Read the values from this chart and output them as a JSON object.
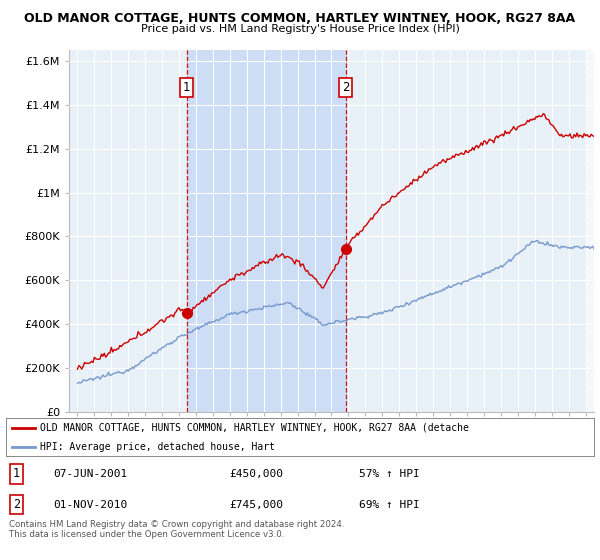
{
  "title1": "OLD MANOR COTTAGE, HUNTS COMMON, HARTLEY WINTNEY, HOOK, RG27 8AA",
  "title2": "Price paid vs. HM Land Registry's House Price Index (HPI)",
  "ylabel_ticks": [
    "£0",
    "£200K",
    "£400K",
    "£600K",
    "£800K",
    "£1M",
    "£1.2M",
    "£1.4M",
    "£1.6M"
  ],
  "ytick_values": [
    0,
    200000,
    400000,
    600000,
    800000,
    1000000,
    1200000,
    1400000,
    1600000
  ],
  "ylim": [
    0,
    1650000
  ],
  "xlim_start": 1994.5,
  "xlim_end": 2025.5,
  "sale1_x": 2001.44,
  "sale1_y": 450000,
  "sale2_x": 2010.83,
  "sale2_y": 745000,
  "legend_line1": "OLD MANOR COTTAGE, HUNTS COMMON, HARTLEY WINTNEY, HOOK, RG27 8AA (detache",
  "legend_line2": "HPI: Average price, detached house, Hart",
  "footnote": "Contains HM Land Registry data © Crown copyright and database right 2024.\nThis data is licensed under the Open Government Licence v3.0.",
  "hpi_color": "#7799cc",
  "price_color": "#cc0000",
  "shade_color": "#ccddf5",
  "background_color": "#e8f0f8",
  "plot_bg": "#e8f0f8"
}
